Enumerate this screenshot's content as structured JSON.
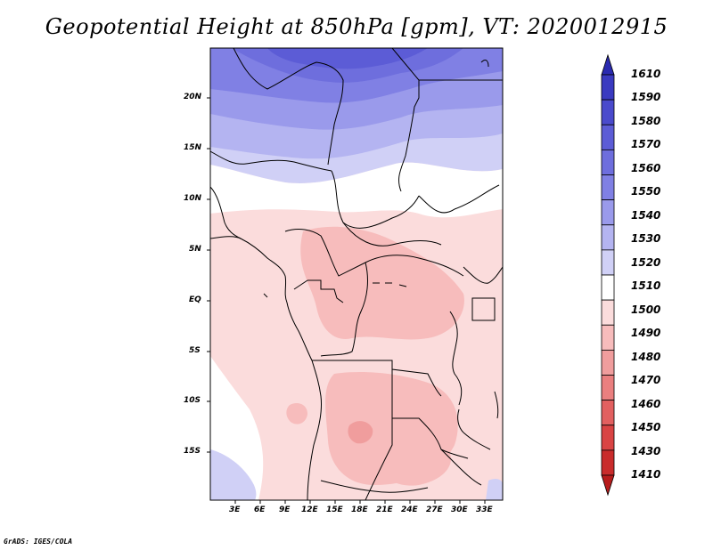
{
  "title": "Geopotential Height at 850hPa [gpm], VT: 2020012915",
  "credit": "GrADS: IGES/COLA",
  "lat_labels": [
    "20N",
    "15N",
    "10N",
    "5N",
    "EQ",
    "5S",
    "10S",
    "15S"
  ],
  "lon_labels": [
    "3E",
    "6E",
    "9E",
    "12E",
    "15E",
    "18E",
    "21E",
    "24E",
    "27E",
    "30E",
    "33E"
  ],
  "colorbar": {
    "labels": [
      "1610",
      "1590",
      "1580",
      "1570",
      "1560",
      "1550",
      "1540",
      "1530",
      "1520",
      "1510",
      "1500",
      "1490",
      "1480",
      "1470",
      "1460",
      "1450",
      "1430",
      "1410"
    ],
    "colors": [
      "#2a2ab0",
      "#3a3ac0",
      "#4a4acc",
      "#5c5cd6",
      "#6e6edd",
      "#8080e4",
      "#9a9aeb",
      "#b4b4f1",
      "#d0d0f6",
      "#ffffff",
      "#fbdcdc",
      "#f7bcbc",
      "#f09d9d",
      "#ea7f7f",
      "#e26060",
      "#d94444",
      "#c92c2c",
      "#b71c1c"
    ]
  }
}
